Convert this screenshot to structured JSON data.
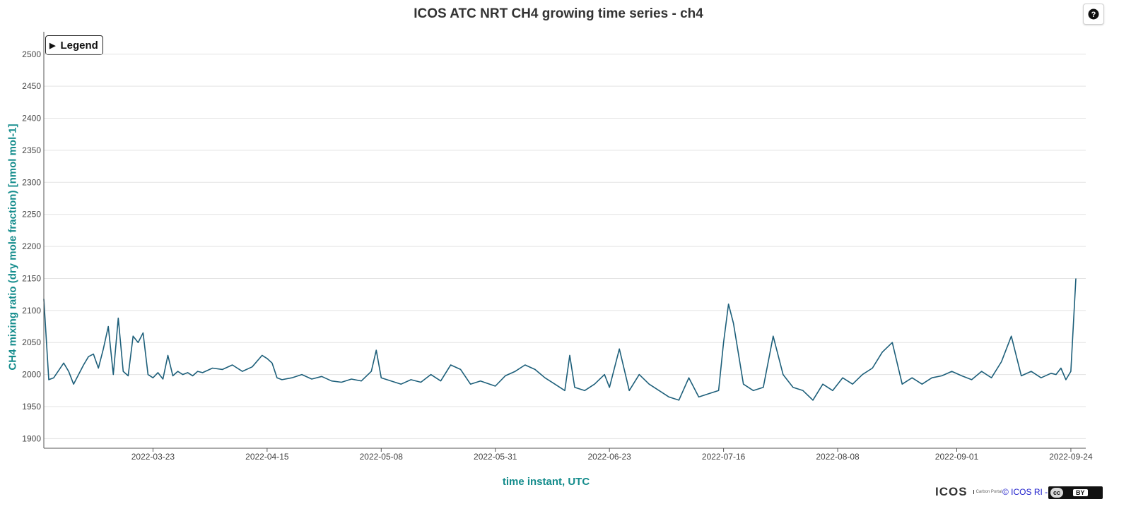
{
  "title": "ICOS ATC NRT CH4 growing time series - ch4",
  "help": {
    "label": "?"
  },
  "legend_button": {
    "label": "Legend",
    "arrow": "▶"
  },
  "footer": {
    "logo_text": "ICOS",
    "logo_sub": "Carbon Portal",
    "credit": "© ICOS RI -",
    "license": "BY",
    "license_prefix": "cc"
  },
  "colors": {
    "axis_label": "#148c8c",
    "series_main": "#1d5f7a",
    "series_highlight": "#6a9a1f",
    "series_dip": "#6a3fb0",
    "grid": "#e3e3e3"
  },
  "chart_data": {
    "type": "line",
    "title": "ICOS ATC NRT CH4 growing time series - ch4",
    "xlabel": "time instant, UTC",
    "ylabel": "CH4 mixing ratio (dry mole fraction) [nmol mol-1]",
    "ylim": [
      1885,
      2535
    ],
    "xlim": [
      "2022-03-01",
      "2022-09-27"
    ],
    "yticks": [
      1900,
      1950,
      2000,
      2050,
      2100,
      2150,
      2200,
      2250,
      2300,
      2350,
      2400,
      2450,
      2500
    ],
    "xticks": [
      "2022-03-23",
      "2022-04-15",
      "2022-05-08",
      "2022-05-31",
      "2022-06-23",
      "2022-07-16",
      "2022-08-08",
      "2022-09-01",
      "2022-09-24"
    ],
    "grid": "horizontal",
    "legend": "collapsed, top-left",
    "series": [
      {
        "color": "#1d5f7a",
        "x": [
          "2022-03-01",
          "2022-03-02",
          "2022-03-03",
          "2022-03-05",
          "2022-03-06",
          "2022-03-07",
          "2022-03-09",
          "2022-03-10",
          "2022-03-11",
          "2022-03-12",
          "2022-03-13",
          "2022-03-14",
          "2022-03-15",
          "2022-03-16",
          "2022-03-17",
          "2022-03-18",
          "2022-03-19",
          "2022-03-20",
          "2022-03-21",
          "2022-03-22",
          "2022-03-23",
          "2022-03-24",
          "2022-03-25",
          "2022-03-26",
          "2022-03-27",
          "2022-03-28",
          "2022-03-29",
          "2022-03-30",
          "2022-03-31",
          "2022-04-01",
          "2022-04-02",
          "2022-04-04",
          "2022-04-06",
          "2022-04-08",
          "2022-04-10",
          "2022-04-12",
          "2022-04-14",
          "2022-04-15",
          "2022-04-16",
          "2022-04-17",
          "2022-04-18",
          "2022-04-20",
          "2022-04-22",
          "2022-04-24",
          "2022-04-26",
          "2022-04-28",
          "2022-04-30",
          "2022-05-02",
          "2022-05-04",
          "2022-05-06",
          "2022-05-07",
          "2022-05-08",
          "2022-05-10",
          "2022-05-12",
          "2022-05-14",
          "2022-05-16",
          "2022-05-18",
          "2022-05-20",
          "2022-05-22",
          "2022-05-24",
          "2022-05-26",
          "2022-05-28",
          "2022-05-31",
          "2022-06-02",
          "2022-06-04",
          "2022-06-06",
          "2022-06-08",
          "2022-06-10",
          "2022-06-12",
          "2022-06-14",
          "2022-06-15",
          "2022-06-16",
          "2022-06-18",
          "2022-06-20",
          "2022-06-22",
          "2022-06-23",
          "2022-06-25",
          "2022-06-27",
          "2022-06-29",
          "2022-07-01",
          "2022-07-03",
          "2022-07-05",
          "2022-07-07",
          "2022-07-09",
          "2022-07-11",
          "2022-07-13",
          "2022-07-15",
          "2022-07-16",
          "2022-07-17",
          "2022-07-18",
          "2022-07-20",
          "2022-07-22",
          "2022-07-24",
          "2022-07-26",
          "2022-07-28",
          "2022-07-30",
          "2022-08-01",
          "2022-08-03",
          "2022-08-05",
          "2022-08-07",
          "2022-08-09",
          "2022-08-11",
          "2022-08-13",
          "2022-08-15",
          "2022-08-17",
          "2022-08-19",
          "2022-08-21",
          "2022-08-23",
          "2022-08-25",
          "2022-08-27",
          "2022-08-29",
          "2022-08-31",
          "2022-09-02",
          "2022-09-04",
          "2022-09-06",
          "2022-09-08",
          "2022-09-10",
          "2022-09-12",
          "2022-09-14",
          "2022-09-16",
          "2022-09-18",
          "2022-09-20",
          "2022-09-21",
          "2022-09-22",
          "2022-09-23",
          "2022-09-24",
          "2022-09-25"
        ],
        "y": [
          2118,
          1992,
          1995,
          2018,
          2005,
          1985,
          2015,
          2028,
          2032,
          2010,
          2040,
          2075,
          2000,
          2088,
          2005,
          1998,
          2060,
          2050,
          2065,
          2000,
          1995,
          2003,
          1993,
          2030,
          1998,
          2005,
          2000,
          2003,
          1998,
          2005,
          2003,
          2010,
          2008,
          2015,
          2005,
          2012,
          2030,
          2025,
          2018,
          1995,
          1992,
          1995,
          2000,
          1993,
          1997,
          1990,
          1988,
          1993,
          1990,
          2005,
          2038,
          1995,
          1990,
          1985,
          1992,
          1988,
          2000,
          1990,
          2015,
          2008,
          1985,
          1990,
          1982,
          1998,
          2005,
          2015,
          2008,
          1995,
          1985,
          1975,
          2030,
          1980,
          1975,
          1985,
          2000,
          1980,
          2040,
          1975,
          2000,
          1985,
          1975,
          1965,
          1960,
          1995,
          1965,
          1970,
          1975,
          2050,
          2110,
          2080,
          1985,
          1975,
          1980,
          2060,
          2000,
          1980,
          1975,
          1960,
          1985,
          1975,
          1995,
          1985,
          2000,
          2010,
          2035,
          2050,
          1985,
          1995,
          1985,
          1995,
          1998,
          2005,
          1998,
          1992,
          2005,
          1995,
          2020,
          2060,
          1998,
          2005,
          1995,
          2002,
          2000,
          2010,
          1992,
          2005,
          2150
        ]
      }
    ]
  }
}
